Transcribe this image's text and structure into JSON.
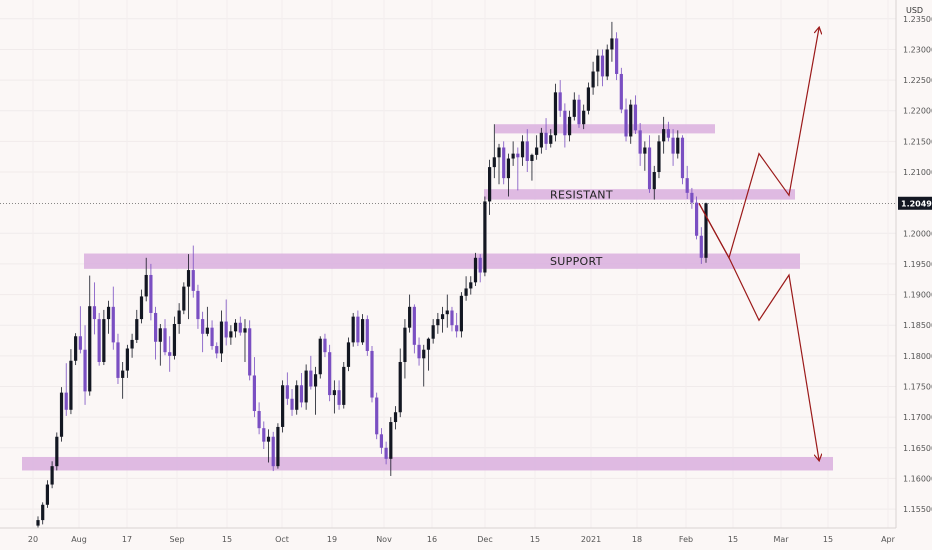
{
  "chart_data": {
    "type": "candlestick",
    "currency": "USD",
    "current_price": "1.20490",
    "y_ticks": [
      "1.23500",
      "1.23000",
      "1.22500",
      "1.22000",
      "1.21500",
      "1.21000",
      "1.20000",
      "1.19500",
      "1.19000",
      "1.18500",
      "1.18000",
      "1.17500",
      "1.17000",
      "1.16500",
      "1.16000",
      "1.15500"
    ],
    "x_ticks": [
      "20",
      "Aug",
      "17",
      "Sep",
      "15",
      "Oct",
      "19",
      "Nov",
      "16",
      "Dec",
      "15",
      "2021",
      "18",
      "Feb",
      "15",
      "Mar",
      "15",
      "Apr"
    ],
    "ylim": [
      1.1535,
      1.2365
    ],
    "zones": [
      {
        "label": "RESISTANT",
        "low": 1.2055,
        "high": 1.2072
      },
      {
        "label": "SUPPORT",
        "low": 1.1942,
        "high": 1.1967
      },
      {
        "label": "",
        "low": 1.1613,
        "high": 1.1635
      },
      {
        "label": "",
        "low": 1.2163,
        "high": 1.2178
      }
    ],
    "candles": [
      [
        1.1523,
        1.1538,
        1.1519,
        1.1532
      ],
      [
        1.1532,
        1.1561,
        1.1525,
        1.1557
      ],
      [
        1.1557,
        1.1597,
        1.1552,
        1.159
      ],
      [
        1.159,
        1.1628,
        1.1584,
        1.162
      ],
      [
        1.162,
        1.1675,
        1.1613,
        1.1668
      ],
      [
        1.1668,
        1.1749,
        1.166,
        1.174
      ],
      [
        1.174,
        1.1788,
        1.1702,
        1.1712
      ],
      [
        1.1712,
        1.1811,
        1.1705,
        1.1792
      ],
      [
        1.1792,
        1.1837,
        1.1785,
        1.1832
      ],
      [
        1.1832,
        1.1881,
        1.1804,
        1.181
      ],
      [
        1.181,
        1.185,
        1.172,
        1.1742
      ],
      [
        1.1742,
        1.1931,
        1.1735,
        1.1881
      ],
      [
        1.1881,
        1.192,
        1.1835,
        1.186
      ],
      [
        1.186,
        1.187,
        1.1784,
        1.179
      ],
      [
        1.179,
        1.1875,
        1.1785,
        1.186
      ],
      [
        1.186,
        1.189,
        1.1836,
        1.188
      ],
      [
        1.188,
        1.1913,
        1.181,
        1.1822
      ],
      [
        1.1822,
        1.1836,
        1.1754,
        1.1764
      ],
      [
        1.1764,
        1.179,
        1.173,
        1.1776
      ],
      [
        1.1776,
        1.1818,
        1.1764,
        1.1812
      ],
      [
        1.1812,
        1.1836,
        1.1797,
        1.1826
      ],
      [
        1.1826,
        1.1875,
        1.1821,
        1.186
      ],
      [
        1.186,
        1.1908,
        1.1853,
        1.1897
      ],
      [
        1.1897,
        1.196,
        1.1889,
        1.1932
      ],
      [
        1.1932,
        1.195,
        1.1858,
        1.187
      ],
      [
        1.187,
        1.188,
        1.1794,
        1.1823
      ],
      [
        1.1823,
        1.1852,
        1.1784,
        1.1845
      ],
      [
        1.1845,
        1.186,
        1.1801,
        1.1806
      ],
      [
        1.1806,
        1.1832,
        1.1774,
        1.18
      ],
      [
        1.18,
        1.1864,
        1.1794,
        1.1852
      ],
      [
        1.1852,
        1.1886,
        1.1836,
        1.1874
      ],
      [
        1.1874,
        1.192,
        1.1868,
        1.1913
      ],
      [
        1.1913,
        1.1966,
        1.186,
        1.194
      ],
      [
        1.194,
        1.198,
        1.1895,
        1.1906
      ],
      [
        1.1906,
        1.1916,
        1.1844,
        1.186
      ],
      [
        1.186,
        1.1872,
        1.1806,
        1.1836
      ],
      [
        1.1836,
        1.188,
        1.1832,
        1.1846
      ],
      [
        1.1846,
        1.1858,
        1.181,
        1.1816
      ],
      [
        1.1816,
        1.1822,
        1.1796,
        1.1804
      ],
      [
        1.1804,
        1.1874,
        1.179,
        1.1856
      ],
      [
        1.1856,
        1.1892,
        1.1817,
        1.183
      ],
      [
        1.183,
        1.185,
        1.1818,
        1.184
      ],
      [
        1.184,
        1.186,
        1.183,
        1.1854
      ],
      [
        1.1854,
        1.1864,
        1.1833,
        1.1838
      ],
      [
        1.1838,
        1.186,
        1.179,
        1.1845
      ],
      [
        1.1845,
        1.1858,
        1.176,
        1.1768
      ],
      [
        1.1768,
        1.1798,
        1.17,
        1.171
      ],
      [
        1.171,
        1.1724,
        1.1672,
        1.1682
      ],
      [
        1.1682,
        1.1693,
        1.1648,
        1.166
      ],
      [
        1.166,
        1.168,
        1.1626,
        1.1668
      ],
      [
        1.1668,
        1.1676,
        1.1612,
        1.162
      ],
      [
        1.162,
        1.169,
        1.1616,
        1.1684
      ],
      [
        1.1684,
        1.176,
        1.1675,
        1.1752
      ],
      [
        1.1752,
        1.1773,
        1.172,
        1.173
      ],
      [
        1.173,
        1.1746,
        1.1702,
        1.1712
      ],
      [
        1.1712,
        1.176,
        1.1704,
        1.1752
      ],
      [
        1.1752,
        1.1772,
        1.1716,
        1.1724
      ],
      [
        1.1724,
        1.1786,
        1.1712,
        1.1776
      ],
      [
        1.1776,
        1.18,
        1.1745,
        1.175
      ],
      [
        1.175,
        1.1782,
        1.1704,
        1.177
      ],
      [
        1.177,
        1.1832,
        1.1763,
        1.1828
      ],
      [
        1.1828,
        1.1836,
        1.1798,
        1.1806
      ],
      [
        1.1806,
        1.1818,
        1.1726,
        1.1736
      ],
      [
        1.1736,
        1.176,
        1.1706,
        1.1744
      ],
      [
        1.1744,
        1.176,
        1.1712,
        1.172
      ],
      [
        1.172,
        1.179,
        1.1714,
        1.1782
      ],
      [
        1.1782,
        1.183,
        1.1775,
        1.1822
      ],
      [
        1.1822,
        1.187,
        1.1815,
        1.1864
      ],
      [
        1.1864,
        1.1874,
        1.1816,
        1.1822
      ],
      [
        1.1822,
        1.1868,
        1.1818,
        1.186
      ],
      [
        1.186,
        1.1866,
        1.18,
        1.1808
      ],
      [
        1.1808,
        1.1816,
        1.1724,
        1.1732
      ],
      [
        1.1732,
        1.174,
        1.1664,
        1.1672
      ],
      [
        1.1672,
        1.1682,
        1.164,
        1.165
      ],
      [
        1.165,
        1.166,
        1.1623,
        1.1632
      ],
      [
        1.1632,
        1.17,
        1.1604,
        1.1692
      ],
      [
        1.1692,
        1.1718,
        1.168,
        1.1708
      ],
      [
        1.1708,
        1.1812,
        1.17,
        1.179
      ],
      [
        1.179,
        1.186,
        1.1763,
        1.1846
      ],
      [
        1.1846,
        1.19,
        1.1838,
        1.188
      ],
      [
        1.188,
        1.1884,
        1.1804,
        1.1818
      ],
      [
        1.1818,
        1.183,
        1.1784,
        1.1796
      ],
      [
        1.1796,
        1.1818,
        1.175,
        1.181
      ],
      [
        1.181,
        1.183,
        1.1776,
        1.1828
      ],
      [
        1.1828,
        1.186,
        1.182,
        1.185
      ],
      [
        1.185,
        1.187,
        1.1836,
        1.186
      ],
      [
        1.186,
        1.188,
        1.1838,
        1.1868
      ],
      [
        1.1868,
        1.19,
        1.1846,
        1.1874
      ],
      [
        1.1874,
        1.188,
        1.184,
        1.185
      ],
      [
        1.185,
        1.187,
        1.183,
        1.184
      ],
      [
        1.184,
        1.1904,
        1.183,
        1.1898
      ],
      [
        1.1898,
        1.193,
        1.189,
        1.191
      ],
      [
        1.191,
        1.193,
        1.19,
        1.192
      ],
      [
        1.192,
        1.1968,
        1.1914,
        1.196
      ],
      [
        1.196,
        1.1966,
        1.192,
        1.1936
      ],
      [
        1.1936,
        1.206,
        1.193,
        1.2052
      ],
      [
        1.2052,
        1.212,
        1.203,
        1.2108
      ],
      [
        1.2108,
        1.2178,
        1.209,
        1.2124
      ],
      [
        1.2124,
        1.2146,
        1.208,
        1.214
      ],
      [
        1.214,
        1.215,
        1.208,
        1.209
      ],
      [
        1.209,
        1.213,
        1.206,
        1.2122
      ],
      [
        1.2122,
        1.215,
        1.211,
        1.213
      ],
      [
        1.213,
        1.214,
        1.207,
        1.2124
      ],
      [
        1.2124,
        1.216,
        1.211,
        1.215
      ],
      [
        1.215,
        1.217,
        1.21,
        1.2118
      ],
      [
        1.2118,
        1.213,
        1.2086,
        1.2128
      ],
      [
        1.2128,
        1.216,
        1.212,
        1.214
      ],
      [
        1.214,
        1.2172,
        1.213,
        1.2164
      ],
      [
        1.2164,
        1.2188,
        1.2136,
        1.2146
      ],
      [
        1.2146,
        1.217,
        1.214,
        1.216
      ],
      [
        1.216,
        1.2244,
        1.215,
        1.223
      ],
      [
        1.223,
        1.225,
        1.219,
        1.22
      ],
      [
        1.22,
        1.2212,
        1.214,
        1.216
      ],
      [
        1.216,
        1.22,
        1.215,
        1.219
      ],
      [
        1.219,
        1.223,
        1.2184,
        1.2218
      ],
      [
        1.2218,
        1.2226,
        1.2172,
        1.2178
      ],
      [
        1.2178,
        1.221,
        1.217,
        1.22
      ],
      [
        1.22,
        1.2246,
        1.2194,
        1.2238
      ],
      [
        1.2238,
        1.228,
        1.2226,
        1.2264
      ],
      [
        1.2264,
        1.23,
        1.224,
        1.229
      ],
      [
        1.229,
        1.23,
        1.224,
        1.2256
      ],
      [
        1.2256,
        1.2308,
        1.225,
        1.23
      ],
      [
        1.23,
        1.2345,
        1.228,
        1.2318
      ],
      [
        1.2318,
        1.2328,
        1.225,
        1.226
      ],
      [
        1.226,
        1.227,
        1.2196,
        1.2202
      ],
      [
        1.2202,
        1.222,
        1.215,
        1.2158
      ],
      [
        1.2158,
        1.2218,
        1.2146,
        1.221
      ],
      [
        1.221,
        1.2225,
        1.2162,
        1.2168
      ],
      [
        1.2168,
        1.218,
        1.211,
        1.213
      ],
      [
        1.213,
        1.215,
        1.2102,
        1.214
      ],
      [
        1.214,
        1.216,
        1.2066,
        1.2072
      ],
      [
        1.2072,
        1.211,
        1.2055,
        1.21
      ],
      [
        1.21,
        1.216,
        1.209,
        1.215
      ],
      [
        1.215,
        1.219,
        1.213,
        1.217
      ],
      [
        1.217,
        1.2182,
        1.215,
        1.2156
      ],
      [
        1.2156,
        1.217,
        1.211,
        1.213
      ],
      [
        1.213,
        1.2168,
        1.2122,
        1.2156
      ],
      [
        1.2156,
        1.216,
        1.208,
        1.209
      ],
      [
        1.209,
        1.211,
        1.2056,
        1.2066
      ],
      [
        1.2066,
        1.2074,
        1.204,
        1.205
      ],
      [
        1.205,
        1.206,
        1.199,
        1.1996
      ],
      [
        1.1996,
        1.201,
        1.195,
        1.196
      ],
      [
        1.196,
        1.205,
        1.1952,
        1.2049
      ]
    ],
    "arrows": [
      {
        "name": "bullish-path",
        "points": [
          [
            1.2049,
            -1
          ],
          [
            1.196,
            1
          ],
          [
            1.213,
            3
          ],
          [
            1.2062,
            5
          ],
          [
            1.2335,
            7
          ]
        ]
      },
      {
        "name": "bearish-path",
        "points": [
          [
            1.2049,
            -1
          ],
          [
            1.196,
            1
          ],
          [
            1.1858,
            3
          ],
          [
            1.1932,
            5
          ],
          [
            1.163,
            7
          ]
        ]
      }
    ]
  }
}
